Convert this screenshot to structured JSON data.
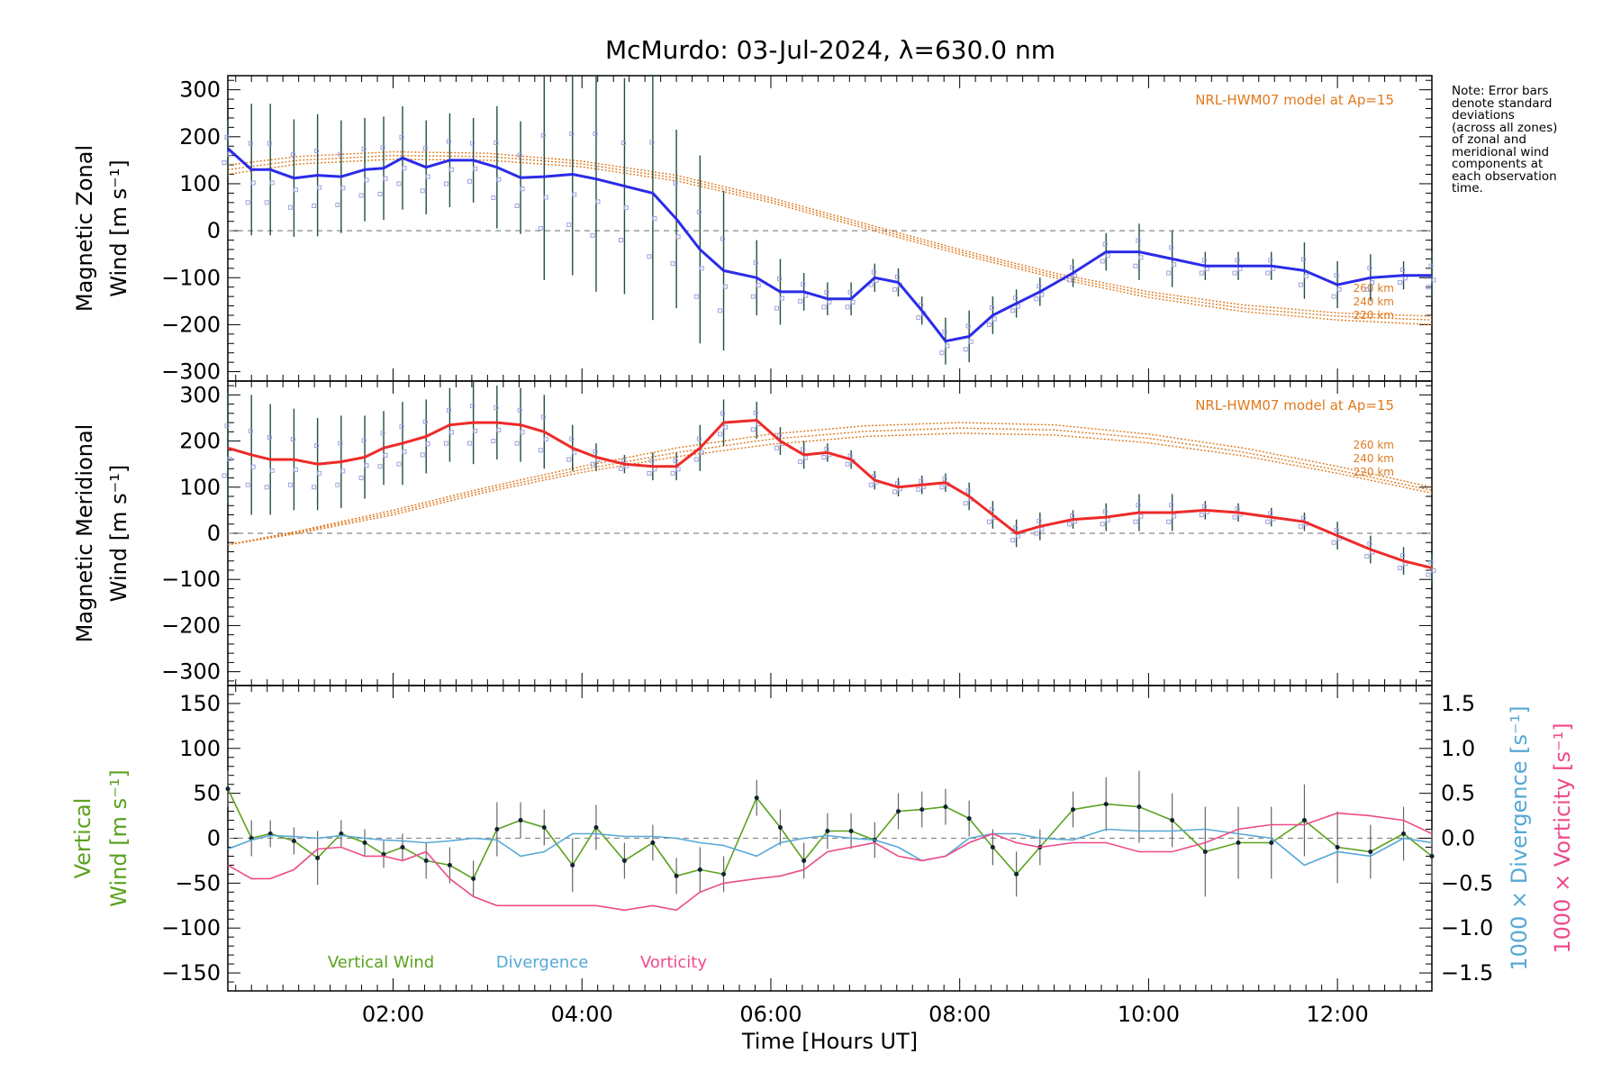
{
  "title": "McMurdo: 03-Jul-2024, λ=630.0 nm",
  "note_lines": [
    "Note: Error bars",
    "denote standard",
    "deviations",
    "(across all zones)",
    "of zonal and",
    "meridional wind",
    "components at",
    "each observation",
    "time."
  ],
  "colors": {
    "zonal": "#2b2be8",
    "meridional": "#ee2a2a",
    "model": "#e07a1e",
    "vertical": "#5aa21e",
    "divergence": "#55a8d6",
    "vorticity": "#ee4a8a",
    "scatter": "#9f9fdf",
    "errorbar": "#1f4f3f"
  },
  "chart_data": [
    {
      "type": "line",
      "panel": "zonal",
      "ylabel": [
        "Magnetic Zonal",
        "Wind [m s⁻¹]"
      ],
      "ylim": [
        -320,
        330
      ],
      "yticks": [
        300,
        200,
        100,
        0,
        -100,
        -200,
        -300
      ],
      "ytick_labels": [
        "300",
        "200",
        "100",
        "0",
        "−100",
        "−200",
        "−300"
      ],
      "xlim": [
        0.25,
        13.0
      ],
      "model_label": "NRL-HWM07 model at Ap=15",
      "model_altitudes": [
        "260 km",
        "240 km",
        "220 km"
      ],
      "x": [
        0.25,
        0.5,
        0.7,
        0.95,
        1.2,
        1.45,
        1.7,
        1.9,
        2.1,
        2.35,
        2.6,
        2.85,
        3.1,
        3.35,
        3.6,
        3.9,
        4.15,
        4.45,
        4.75,
        5.0,
        5.25,
        5.5,
        5.85,
        6.1,
        6.35,
        6.6,
        6.85,
        7.1,
        7.35,
        7.6,
        7.85,
        8.1,
        8.35,
        8.6,
        8.85,
        9.2,
        9.55,
        9.9,
        10.25,
        10.6,
        10.95,
        11.3,
        11.65,
        12.0,
        12.35,
        12.7,
        13.0
      ],
      "values": [
        175,
        130,
        130,
        112,
        118,
        115,
        130,
        133,
        155,
        135,
        150,
        150,
        135,
        113,
        115,
        120,
        110,
        95,
        80,
        25,
        -40,
        -85,
        -100,
        -130,
        -130,
        -145,
        -145,
        -100,
        -110,
        -170,
        -235,
        -225,
        -180,
        -155,
        -130,
        -90,
        -45,
        -45,
        -60,
        -75,
        -75,
        -75,
        -85,
        -115,
        -100,
        -95,
        -95
      ],
      "error": [
        60,
        140,
        140,
        125,
        130,
        120,
        110,
        110,
        110,
        100,
        100,
        90,
        130,
        120,
        220,
        215,
        240,
        230,
        270,
        190,
        200,
        170,
        80,
        70,
        40,
        35,
        35,
        30,
        30,
        30,
        50,
        55,
        40,
        30,
        30,
        30,
        40,
        60,
        60,
        30,
        30,
        30,
        60,
        50,
        50,
        30,
        50
      ],
      "model_curves": [
        {
          "name": "260 km",
          "x": [
            0.25,
            1.0,
            2.0,
            3.0,
            4.0,
            5.0,
            6.0,
            7.0,
            8.0,
            9.0,
            10.0,
            11.0,
            12.0,
            13.0
          ],
          "values": [
            140,
            158,
            168,
            165,
            148,
            118,
            70,
            15,
            -40,
            -90,
            -130,
            -158,
            -175,
            -182
          ]
        },
        {
          "name": "240 km",
          "x": [
            0.25,
            1.0,
            2.0,
            3.0,
            4.0,
            5.0,
            6.0,
            7.0,
            8.0,
            9.0,
            10.0,
            11.0,
            12.0,
            13.0
          ],
          "values": [
            130,
            150,
            160,
            158,
            142,
            112,
            65,
            10,
            -45,
            -95,
            -136,
            -165,
            -182,
            -190
          ]
        },
        {
          "name": "220 km",
          "x": [
            0.25,
            1.0,
            2.0,
            3.0,
            4.0,
            5.0,
            6.0,
            7.0,
            8.0,
            9.0,
            10.0,
            11.0,
            12.0,
            13.0
          ],
          "values": [
            120,
            142,
            152,
            150,
            136,
            106,
            60,
            5,
            -50,
            -100,
            -142,
            -172,
            -190,
            -200
          ]
        }
      ]
    },
    {
      "type": "line",
      "panel": "meridional",
      "ylabel": [
        "Magnetic Meridional",
        "Wind [m s⁻¹]"
      ],
      "ylim": [
        -330,
        330
      ],
      "yticks": [
        300,
        200,
        100,
        0,
        -100,
        -200,
        -300
      ],
      "ytick_labels": [
        "300",
        "200",
        "100",
        "0",
        "−100",
        "−200",
        "−300"
      ],
      "xlim": [
        0.25,
        13.0
      ],
      "model_label": "NRL-HWM07 model at Ap=15",
      "model_altitudes": [
        "260 km",
        "240 km",
        "220 km"
      ],
      "x": [
        0.25,
        0.5,
        0.7,
        0.95,
        1.2,
        1.45,
        1.7,
        1.9,
        2.1,
        2.35,
        2.6,
        2.85,
        3.1,
        3.35,
        3.6,
        3.9,
        4.15,
        4.45,
        4.75,
        5.0,
        5.25,
        5.5,
        5.85,
        6.1,
        6.35,
        6.6,
        6.85,
        7.1,
        7.35,
        7.6,
        7.85,
        8.1,
        8.35,
        8.6,
        8.85,
        9.2,
        9.55,
        9.9,
        10.25,
        10.6,
        10.95,
        11.3,
        11.65,
        12.0,
        12.35,
        12.7,
        13.0
      ],
      "values": [
        185,
        170,
        160,
        160,
        150,
        155,
        165,
        185,
        195,
        210,
        235,
        240,
        240,
        235,
        220,
        185,
        165,
        150,
        145,
        145,
        185,
        240,
        245,
        200,
        170,
        175,
        160,
        115,
        100,
        105,
        110,
        80,
        40,
        0,
        15,
        30,
        35,
        45,
        45,
        50,
        45,
        35,
        25,
        -5,
        -35,
        -60,
        -75
      ],
      "error": [
        120,
        130,
        120,
        110,
        100,
        100,
        90,
        80,
        90,
        80,
        80,
        90,
        80,
        80,
        80,
        50,
        30,
        20,
        30,
        30,
        50,
        50,
        40,
        30,
        30,
        20,
        20,
        20,
        20,
        20,
        20,
        30,
        30,
        30,
        30,
        20,
        30,
        40,
        40,
        20,
        20,
        20,
        20,
        30,
        30,
        30,
        30
      ],
      "model_curves": [
        {
          "name": "260 km",
          "x": [
            0.25,
            1.0,
            2.0,
            3.0,
            4.0,
            5.0,
            6.0,
            7.0,
            8.0,
            9.0,
            10.0,
            11.0,
            12.0,
            13.0
          ],
          "values": [
            -25,
            5,
            50,
            100,
            145,
            185,
            215,
            233,
            240,
            235,
            215,
            185,
            145,
            100
          ]
        },
        {
          "name": "240 km",
          "x": [
            0.25,
            1.0,
            2.0,
            3.0,
            4.0,
            5.0,
            6.0,
            7.0,
            8.0,
            9.0,
            10.0,
            11.0,
            12.0,
            13.0
          ],
          "values": [
            -25,
            3,
            45,
            95,
            138,
            175,
            204,
            221,
            228,
            224,
            206,
            176,
            137,
            93
          ]
        },
        {
          "name": "220 km",
          "x": [
            0.25,
            1.0,
            2.0,
            3.0,
            4.0,
            5.0,
            6.0,
            7.0,
            8.0,
            9.0,
            10.0,
            11.0,
            12.0,
            13.0
          ],
          "values": [
            -25,
            0,
            40,
            90,
            132,
            166,
            193,
            210,
            217,
            213,
            196,
            168,
            130,
            87
          ]
        }
      ]
    },
    {
      "type": "line",
      "panel": "vertical",
      "ylabel": [
        "Vertical",
        "Wind [m s⁻¹]"
      ],
      "ylim": [
        -170,
        170
      ],
      "yticks": [
        150,
        100,
        50,
        0,
        -50,
        -100,
        -150
      ],
      "ytick_labels": [
        "150",
        "100",
        "50",
        "0",
        "−50",
        "−100",
        "−150"
      ],
      "y2lim": [
        -1.7,
        1.7
      ],
      "y2ticks": [
        1.5,
        1.0,
        0.5,
        0.0,
        -0.5,
        -1.0,
        -1.5
      ],
      "y2tick_labels": [
        "1.5",
        "1.0",
        "0.5",
        "0.0",
        "−0.5",
        "−1.0",
        "−1.5"
      ],
      "y2labels": [
        "1000 × Divergence [s⁻¹]",
        "1000 × Vorticity [s⁻¹]"
      ],
      "xlim": [
        0.25,
        13.0
      ],
      "xticks": [
        2,
        4,
        6,
        8,
        10,
        12
      ],
      "xtick_labels": [
        "02:00",
        "04:00",
        "06:00",
        "08:00",
        "10:00",
        "12:00"
      ],
      "xlabel": "Time [Hours UT]",
      "legend": [
        "Vertical Wind",
        "Divergence",
        "Vorticity"
      ],
      "series": [
        {
          "name": "Vertical Wind",
          "x": [
            0.25,
            0.5,
            0.7,
            0.95,
            1.2,
            1.45,
            1.7,
            1.9,
            2.1,
            2.35,
            2.6,
            2.85,
            3.1,
            3.35,
            3.6,
            3.9,
            4.15,
            4.45,
            4.75,
            5.0,
            5.25,
            5.5,
            5.85,
            6.1,
            6.35,
            6.6,
            6.85,
            7.1,
            7.35,
            7.6,
            7.85,
            8.1,
            8.35,
            8.6,
            8.85,
            9.2,
            9.55,
            9.9,
            10.25,
            10.6,
            10.95,
            11.3,
            11.65,
            12.0,
            12.35,
            12.7,
            13.0
          ],
          "values": [
            55,
            0,
            5,
            -3,
            -22,
            5,
            -5,
            -18,
            -10,
            -25,
            -30,
            -45,
            10,
            20,
            12,
            -30,
            12,
            -25,
            -5,
            -42,
            -35,
            -40,
            45,
            12,
            -25,
            8,
            8,
            -2,
            30,
            32,
            35,
            22,
            -10,
            -40,
            -10,
            32,
            38,
            35,
            20,
            -15,
            -5,
            -5,
            20,
            -10,
            -15,
            5,
            -20
          ],
          "error": [
            20,
            20,
            15,
            15,
            30,
            15,
            15,
            15,
            15,
            20,
            20,
            20,
            30,
            20,
            20,
            30,
            25,
            20,
            20,
            20,
            25,
            20,
            20,
            20,
            20,
            20,
            20,
            20,
            20,
            20,
            20,
            20,
            20,
            25,
            20,
            20,
            30,
            40,
            30,
            50,
            40,
            40,
            40,
            40,
            30,
            30,
            30
          ]
        },
        {
          "name": "Divergence",
          "axis": "right",
          "x": [
            0.25,
            0.5,
            0.7,
            0.95,
            1.2,
            1.45,
            1.7,
            1.9,
            2.1,
            2.35,
            2.6,
            2.85,
            3.1,
            3.35,
            3.6,
            3.9,
            4.15,
            4.45,
            4.75,
            5.0,
            5.25,
            5.5,
            5.85,
            6.1,
            6.35,
            6.6,
            6.85,
            7.1,
            7.35,
            7.6,
            7.85,
            8.1,
            8.35,
            8.6,
            8.85,
            9.2,
            9.55,
            9.9,
            10.25,
            10.6,
            10.95,
            11.3,
            11.65,
            12.0,
            12.35,
            12.7,
            13.0
          ],
          "values": [
            -0.12,
            -0.02,
            0.03,
            0.02,
            0.0,
            0.03,
            0.0,
            -0.02,
            -0.03,
            -0.05,
            -0.03,
            0.0,
            -0.02,
            -0.2,
            -0.15,
            0.05,
            0.05,
            0.02,
            0.02,
            0.0,
            -0.05,
            -0.08,
            -0.2,
            -0.05,
            0.0,
            0.03,
            0.0,
            -0.02,
            -0.1,
            -0.25,
            -0.2,
            0.0,
            0.05,
            0.05,
            0.0,
            -0.02,
            0.1,
            0.08,
            0.08,
            0.1,
            0.05,
            0.0,
            -0.3,
            -0.15,
            -0.2,
            0.0,
            -0.05
          ]
        },
        {
          "name": "Vorticity",
          "axis": "right",
          "x": [
            0.25,
            0.5,
            0.7,
            0.95,
            1.2,
            1.45,
            1.7,
            1.9,
            2.1,
            2.35,
            2.6,
            2.85,
            3.1,
            3.35,
            3.6,
            3.9,
            4.15,
            4.45,
            4.75,
            5.0,
            5.25,
            5.5,
            5.85,
            6.1,
            6.35,
            6.6,
            6.85,
            7.1,
            7.35,
            7.6,
            7.85,
            8.1,
            8.35,
            8.6,
            8.85,
            9.2,
            9.55,
            9.9,
            10.25,
            10.6,
            10.95,
            11.3,
            11.65,
            12.0,
            12.35,
            12.7,
            13.0
          ],
          "values": [
            -0.3,
            -0.45,
            -0.45,
            -0.35,
            -0.12,
            -0.1,
            -0.2,
            -0.2,
            -0.25,
            -0.15,
            -0.45,
            -0.65,
            -0.75,
            -0.75,
            -0.75,
            -0.75,
            -0.75,
            -0.8,
            -0.75,
            -0.8,
            -0.6,
            -0.5,
            -0.45,
            -0.42,
            -0.35,
            -0.15,
            -0.1,
            -0.05,
            -0.2,
            -0.25,
            -0.2,
            -0.05,
            0.05,
            -0.05,
            -0.1,
            -0.05,
            -0.05,
            -0.15,
            -0.15,
            -0.05,
            0.1,
            0.15,
            0.15,
            0.28,
            0.25,
            0.2,
            0.05
          ]
        }
      ]
    }
  ]
}
